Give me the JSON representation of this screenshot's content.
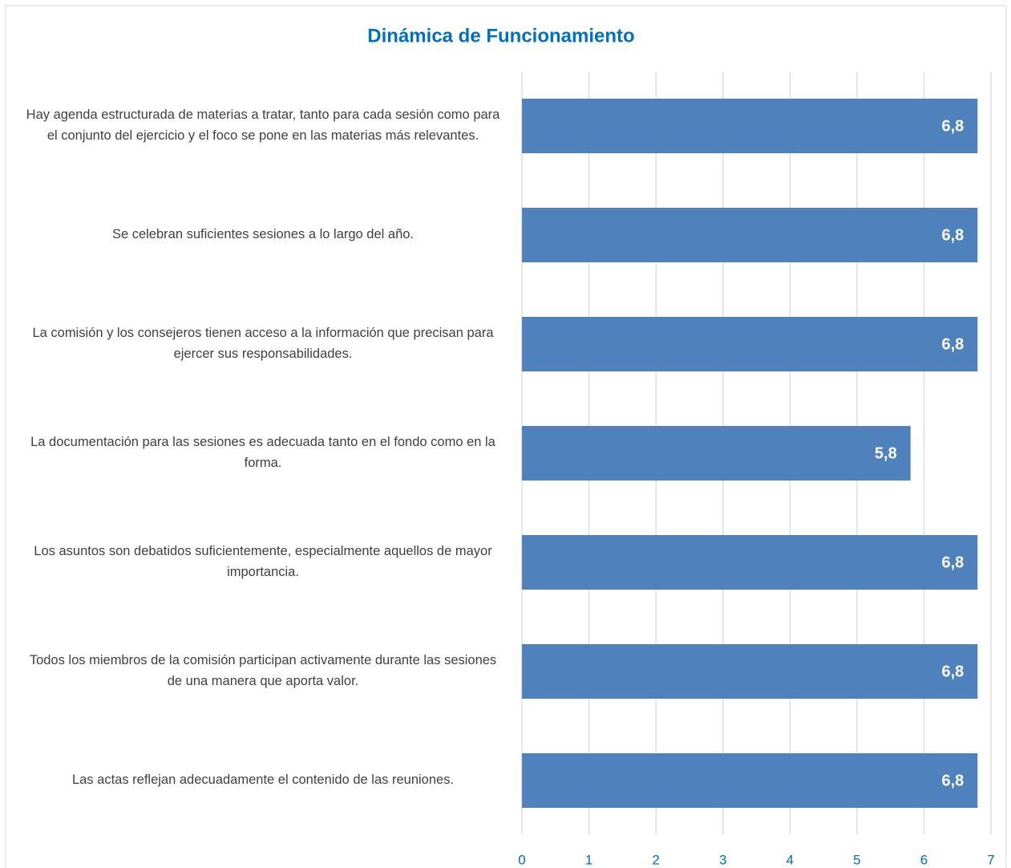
{
  "chart_data": {
    "type": "barh",
    "title": "Dinámica de Funcionamiento",
    "categories": [
      "Hay agenda estructurada de materias a tratar, tanto para cada sesión como para el conjunto del ejercicio y el foco se pone en las materias más relevantes.",
      "Se celebran suficientes sesiones a lo largo del año.",
      "La comisión y los consejeros tienen acceso a la información que precisan para ejercer sus responsabilidades.",
      "La documentación para las sesiones es adecuada tanto en el fondo como en la forma.",
      "Los asuntos son debatidos suficientemente, especialmente aquellos de mayor importancia.",
      "Todos los miembros de la comisión participan activamente durante las sesiones de una manera que aporta valor.",
      "Las actas reflejan adecuadamente el contenido de las reuniones."
    ],
    "values": [
      6.8,
      6.8,
      6.8,
      5.8,
      6.8,
      6.8,
      6.8
    ],
    "value_labels": [
      "6,8",
      "6,8",
      "6,8",
      "5,8",
      "6,8",
      "6,8",
      "6,8"
    ],
    "color": "#4f81bd",
    "xlim": [
      0,
      7
    ],
    "xticks": [
      0,
      1,
      2,
      3,
      4,
      5,
      6,
      7
    ],
    "grid": true
  }
}
